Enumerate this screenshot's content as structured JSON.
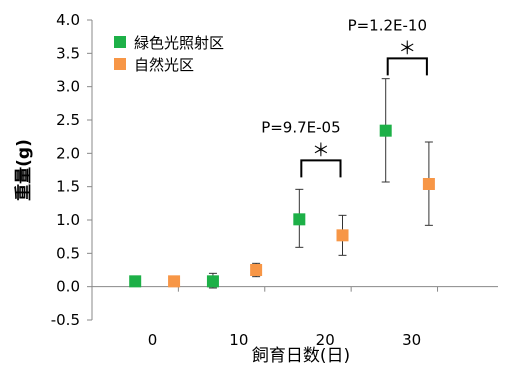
{
  "chart_data": {
    "type": "scatter",
    "xlabel": "飼育日数(日)",
    "ylabel": "重量(g)",
    "ylim": [
      -0.5,
      4.0
    ],
    "xlim": [
      -7,
      40
    ],
    "y_ticks": [
      "-0.5",
      "0.0",
      "0.5",
      "1.0",
      "1.5",
      "2.0",
      "2.5",
      "3.0",
      "3.5",
      "4.0"
    ],
    "x_ticks": [
      "0",
      "10",
      "20",
      "30"
    ],
    "grid": false,
    "legend_position": "top-left",
    "series": [
      {
        "name": "緑色光照射区",
        "color": "#1db047",
        "points": [
          {
            "x": -2,
            "y": 0.08,
            "err_low": 0.0,
            "err_high": 0.0
          },
          {
            "x": 7,
            "y": 0.08,
            "err_low": 0.1,
            "err_high": 0.12
          },
          {
            "x": 17,
            "y": 1.01,
            "err_low": 0.42,
            "err_high": 0.45
          },
          {
            "x": 27,
            "y": 2.34,
            "err_low": 0.77,
            "err_high": 0.78
          }
        ]
      },
      {
        "name": "自然光区",
        "color": "#f79646",
        "points": [
          {
            "x": 2.5,
            "y": 0.08,
            "err_low": 0.0,
            "err_high": 0.0
          },
          {
            "x": 12,
            "y": 0.25,
            "err_low": 0.1,
            "err_high": 0.1
          },
          {
            "x": 22,
            "y": 0.77,
            "err_low": 0.3,
            "err_high": 0.3
          },
          {
            "x": 32,
            "y": 1.54,
            "err_low": 0.62,
            "err_high": 0.63
          }
        ]
      }
    ],
    "annotations": [
      {
        "label": "P=9.7E-05",
        "mark": "＊",
        "x_from": 17,
        "x_to": 22,
        "y": 1.64
      },
      {
        "label": "P=1.2E-10",
        "mark": "＊",
        "x_from": 27,
        "x_to": 32,
        "y": 3.17
      }
    ]
  }
}
